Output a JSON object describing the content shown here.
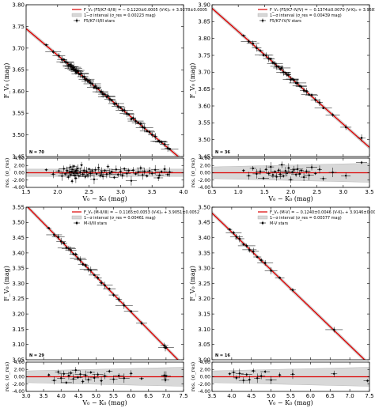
{
  "chart_data": [
    {
      "type": "scatter",
      "panel": "F5/K7-II/III",
      "xlim": [
        1.5,
        4.0
      ],
      "ylim": [
        3.45,
        3.8
      ],
      "res_lim": [
        -4.0,
        4.0
      ],
      "xticks": [
        "1.5",
        "2.0",
        "2.5",
        "3.0",
        "3.5",
        "4.0"
      ],
      "yticks": [
        "3.45",
        "3.50",
        "3.55",
        "3.60",
        "3.65",
        "3.70",
        "3.75",
        "3.80"
      ],
      "res_ticks": [
        "-4.00",
        "-2.00",
        "0.00",
        "2.00",
        "4.00"
      ],
      "xlabel": "V₀ − K₀ (mag)",
      "ylabel": "F_V₀ (mag)",
      "res_ylabel": "res. (σ_res)",
      "n_label": "N = 70",
      "legend": [
        "F_V₀ (F5/K7-II/III) = − 0.1220±0.0005 (V-K)₀ + 3.9278±0.0005",
        "1−σ interval (σ_res = 0.00223 mag)",
        "F5/K7-II/III stars"
      ],
      "fit": {
        "slope": -0.122,
        "intercept": 3.9278
      },
      "x": [
        1.82,
        1.93,
        2.02,
        2.07,
        2.1,
        2.12,
        2.15,
        2.17,
        2.19,
        2.2,
        2.21,
        2.22,
        2.23,
        2.24,
        2.25,
        2.26,
        2.27,
        2.28,
        2.29,
        2.3,
        2.31,
        2.32,
        2.34,
        2.36,
        2.38,
        2.4,
        2.42,
        2.44,
        2.46,
        2.48,
        2.5,
        2.52,
        2.55,
        2.58,
        2.6,
        2.62,
        2.65,
        2.68,
        2.7,
        2.72,
        2.75,
        2.78,
        2.8,
        2.83,
        2.86,
        2.9,
        2.93,
        2.96,
        3.0,
        3.03,
        3.06,
        3.1,
        3.13,
        3.17,
        3.2,
        3.24,
        3.28,
        3.32,
        3.35,
        3.38,
        3.42,
        3.46,
        3.5,
        3.55,
        3.6,
        3.65,
        3.7,
        3.75,
        3.78,
        3.62
      ],
      "res": [
        0.8,
        -0.4,
        0.5,
        -0.9,
        1.1,
        -0.3,
        0.6,
        -1.2,
        0.2,
        1.5,
        -0.6,
        0.3,
        -2.3,
        0.9,
        -0.1,
        1.8,
        -0.7,
        0.4,
        -1.5,
        0.7,
        -0.2,
        1.2,
        -0.9,
        0.1,
        2.1,
        -0.4,
        0.6,
        -1.1,
        0.3,
        -0.6,
        1.0,
        -0.2,
        0.5,
        -1.8,
        0.8,
        -0.3,
        1.4,
        -0.7,
        0.2,
        -1.0,
        0.6,
        -0.4,
        1.7,
        -0.1,
        0.3,
        -1.3,
        0.9,
        -0.5,
        0.4,
        -0.8,
        1.1,
        -0.2,
        0.6,
        -2.2,
        0.7,
        -0.3,
        0.2,
        1.3,
        -0.6,
        0.4,
        -0.9,
        0.5,
        -0.2,
        0.8,
        -1.4,
        0.3,
        1.0,
        -0.5,
        0.2,
        -0.7
      ]
    },
    {
      "type": "scatter",
      "panel": "F5/K7-IV/V",
      "xlim": [
        0.5,
        3.5
      ],
      "ylim": [
        3.45,
        3.9
      ],
      "res_lim": [
        -4.0,
        4.0
      ],
      "xticks": [
        "0.5",
        "1.0",
        "1.5",
        "2.0",
        "2.5",
        "3.0",
        "3.5"
      ],
      "yticks": [
        "3.45",
        "3.50",
        "3.55",
        "3.60",
        "3.65",
        "3.70",
        "3.75",
        "3.80",
        "3.85",
        "3.90"
      ],
      "res_ticks": [
        "-4.00",
        "-2.00",
        "0.00",
        "2.00",
        "4.00"
      ],
      "xlabel": "V₀ − K₀ (mag)",
      "ylabel": "F_V₀ (mag)",
      "res_ylabel": "res. (σ_res)",
      "n_label": "N = 36",
      "legend": [
        "F_V₀ (F5/K7-IV/V) = − 0.1374±0.0070 (V-K)₀ + 3.9581±0.0068",
        "1−σ interval (σ_res = 0.00439 mag)",
        "F5/K7-IV/V stars"
      ],
      "fit": {
        "slope": -0.1374,
        "intercept": 3.9581
      },
      "x": [
        1.1,
        1.2,
        1.28,
        1.35,
        1.42,
        1.48,
        1.53,
        1.58,
        1.62,
        1.66,
        1.7,
        1.73,
        1.77,
        1.8,
        1.83,
        1.86,
        1.9,
        1.93,
        1.96,
        2.0,
        2.03,
        2.06,
        2.1,
        2.13,
        2.17,
        2.2,
        2.25,
        2.3,
        2.35,
        2.4,
        2.47,
        2.55,
        2.62,
        2.8,
        3.05,
        3.35
      ],
      "res": [
        0.6,
        -0.8,
        1.2,
        -0.3,
        0.4,
        -1.5,
        0.9,
        -0.2,
        1.6,
        -0.6,
        0.3,
        -1.1,
        0.7,
        -0.4,
        2.2,
        -0.9,
        0.5,
        -0.1,
        1.3,
        -1.9,
        0.2,
        0.8,
        -0.5,
        1.0,
        -0.3,
        0.6,
        -1.2,
        0.4,
        -0.7,
        1.5,
        -0.2,
        0.9,
        -1.6,
        0.1,
        -0.8,
        2.8
      ]
    },
    {
      "type": "scatter",
      "panel": "M-II/III",
      "xlim": [
        3.0,
        7.5
      ],
      "ylim": [
        3.05,
        3.55
      ],
      "res_lim": [
        -4.0,
        4.0
      ],
      "xticks": [
        "3.0",
        "3.5",
        "4.0",
        "4.5",
        "5.0",
        "5.5",
        "6.0",
        "6.5",
        "7.0",
        "7.5"
      ],
      "yticks": [
        "3.05",
        "3.10",
        "3.15",
        "3.20",
        "3.25",
        "3.30",
        "3.35",
        "3.40",
        "3.45",
        "3.50",
        "3.55"
      ],
      "res_ticks": [
        "-4.00",
        "-2.00",
        "0.00",
        "2.00",
        "4.00"
      ],
      "xlabel": "V₀ − K₀ (mag)",
      "ylabel": "F_V₀ (mag)",
      "res_ylabel": "res. (σ_res)",
      "n_label": "N = 29",
      "legend": [
        "F_V₀ (M-II/III) = − 0.1165±0.0053 (V-K)₀ + 3.9051±0.0052",
        "1−σ interval (σ_res = 0.00461 mag)",
        "M-II/III stars"
      ],
      "fit": {
        "slope": -0.1165,
        "intercept": 3.9051
      },
      "x": [
        3.65,
        3.8,
        3.92,
        4.0,
        4.08,
        4.15,
        4.22,
        4.28,
        4.35,
        4.42,
        4.48,
        4.55,
        4.62,
        4.7,
        4.78,
        4.85,
        4.95,
        5.05,
        5.15,
        5.25,
        5.38,
        5.5,
        5.65,
        5.8,
        6.0,
        6.3,
        6.95,
        6.98,
        7.0
      ],
      "res": [
        0.5,
        -1.0,
        1.3,
        -0.4,
        0.8,
        -1.6,
        0.3,
        1.0,
        -0.6,
        1.8,
        -0.2,
        0.7,
        -1.3,
        0.4,
        -0.8,
        1.2,
        -0.3,
        0.6,
        -1.1,
        0.2,
        1.5,
        -0.7,
        0.3,
        -0.4,
        0.9,
        -0.5,
        0.4,
        -0.9,
        0.2
      ]
    },
    {
      "type": "scatter",
      "panel": "M-V",
      "xlim": [
        3.5,
        7.5
      ],
      "ylim": [
        3.0,
        3.5
      ],
      "res_lim": [
        -4.0,
        4.0
      ],
      "xticks": [
        "3.5",
        "4.0",
        "4.5",
        "5.0",
        "5.5",
        "6.0",
        "6.5",
        "7.0",
        "7.5"
      ],
      "yticks": [
        "3.00",
        "3.05",
        "3.10",
        "3.15",
        "3.20",
        "3.25",
        "3.30",
        "3.35",
        "3.40",
        "3.45",
        "3.50"
      ],
      "res_ticks": [
        "-4.00",
        "-2.00",
        "0.00",
        "2.00",
        "4.00"
      ],
      "xlabel": "V₀ − K₀ (mag)",
      "ylabel": "F_V₀ (mag)",
      "res_ylabel": "res. (σ_res)",
      "n_label": "N = 16",
      "legend": [
        "F_V₀ (M-V) = − 0.1240±0.0046 (V-K)₀ + 3.9146±0.0049",
        "1−σ interval (σ_res = 0.00377 mag)",
        "M-V stars"
      ],
      "fit": {
        "slope": -0.124,
        "intercept": 3.9146
      },
      "x": [
        3.95,
        4.05,
        4.12,
        4.2,
        4.3,
        4.38,
        4.45,
        4.55,
        4.65,
        4.75,
        4.85,
        5.0,
        5.22,
        5.55,
        6.6,
        7.45
      ],
      "res": [
        0.8,
        1.2,
        -0.3,
        0.9,
        -1.0,
        0.6,
        -0.8,
        1.6,
        -0.4,
        0.2,
        1.4,
        -0.9,
        0.5,
        0.7,
        0.8,
        -1.1
      ]
    }
  ]
}
